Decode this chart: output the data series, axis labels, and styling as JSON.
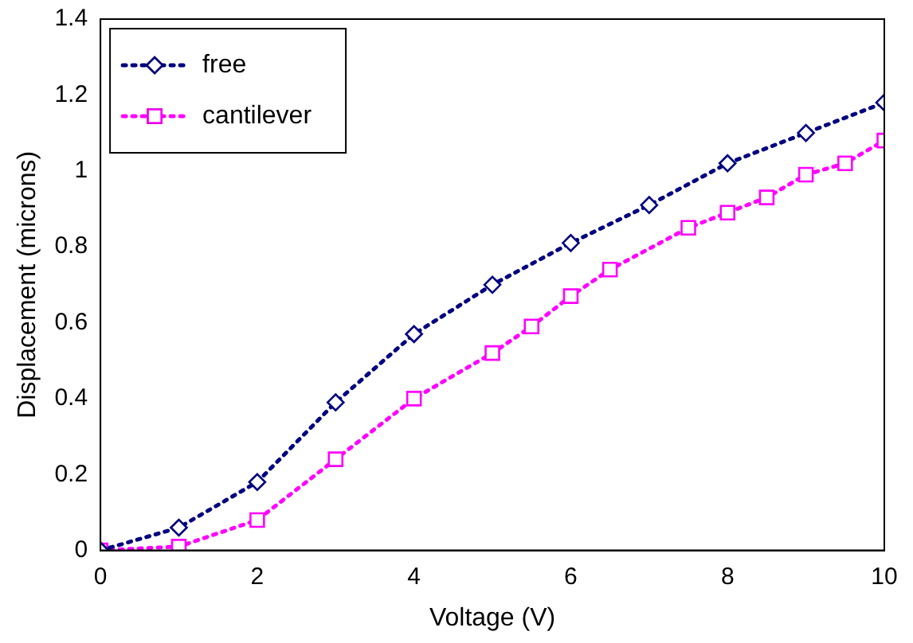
{
  "chart_data": {
    "type": "line",
    "xlabel": "Voltage (V)",
    "ylabel": "Displacement (microns)",
    "xlim": [
      0,
      10
    ],
    "xticks": [
      0,
      2,
      4,
      6,
      8,
      10
    ],
    "ylim": [
      0,
      1.4
    ],
    "yticks": [
      0,
      0.2,
      0.4,
      0.6,
      0.8,
      1,
      1.2,
      1.4
    ],
    "grid": false,
    "legend": "top left",
    "line_style": "dotted",
    "series": [
      {
        "name": "free",
        "color": "#000080",
        "marker": "diamond",
        "x": [
          0,
          1,
          2,
          3,
          4,
          5,
          6,
          7,
          8,
          9,
          10
        ],
        "values": [
          0,
          0.06,
          0.18,
          0.39,
          0.57,
          0.7,
          0.81,
          0.91,
          1.02,
          1.1,
          1.18
        ]
      },
      {
        "name": "cantilever",
        "color": "#ff00ff",
        "marker": "square",
        "x": [
          0,
          1,
          2,
          3,
          4,
          5,
          5.5,
          6,
          6.5,
          7.5,
          8,
          8.5,
          9,
          9.5,
          10
        ],
        "values": [
          0,
          0.01,
          0.08,
          0.24,
          0.4,
          0.52,
          0.59,
          0.67,
          0.74,
          0.85,
          0.89,
          0.93,
          0.99,
          1.02,
          1.08
        ]
      }
    ]
  }
}
